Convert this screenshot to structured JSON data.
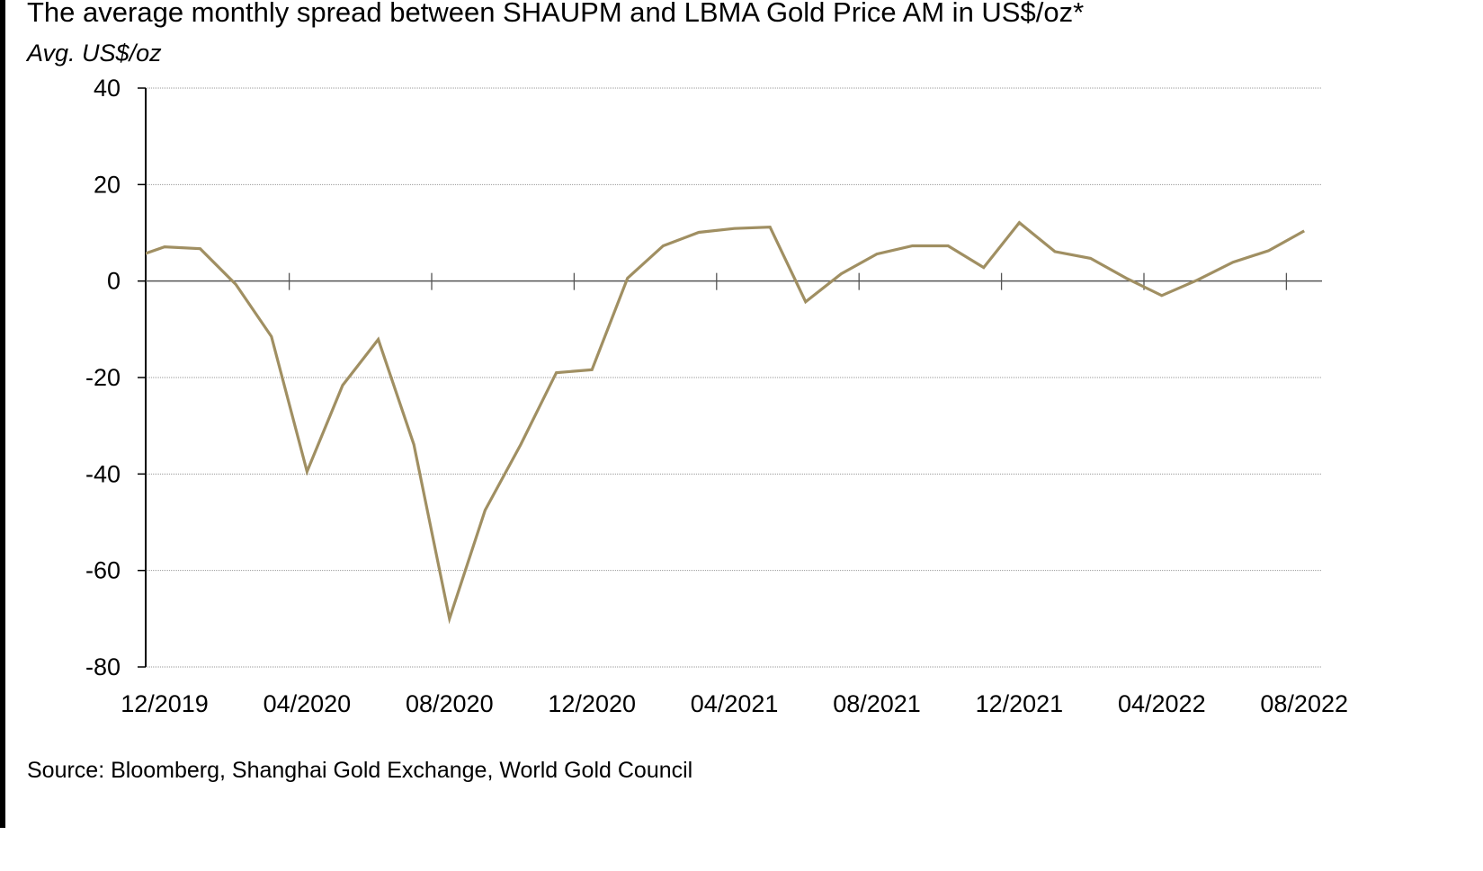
{
  "chart_data": {
    "type": "line",
    "title": "The average monthly spread between SHAUPM and LBMA Gold Price AM in US$/oz*",
    "subtitle": "Avg. US$/oz",
    "ylabel": "Avg. US$/oz",
    "xlabel": "",
    "ylim": [
      -80,
      40
    ],
    "yticks": [
      40,
      20,
      0,
      -20,
      -40,
      -60,
      -80
    ],
    "xtick_labels": [
      "12/2019",
      "04/2020",
      "08/2020",
      "12/2020",
      "04/2021",
      "08/2021",
      "12/2021",
      "04/2022",
      "08/2022"
    ],
    "grid": true,
    "legend": "none",
    "series": [
      {
        "name": "SHAUPM - LBMA Gold Price AM spread",
        "color": "#a08f62",
        "x": [
          "11/2019",
          "12/2019",
          "01/2020",
          "02/2020",
          "03/2020",
          "04/2020",
          "05/2020",
          "06/2020",
          "07/2020",
          "08/2020",
          "09/2020",
          "10/2020",
          "11/2020",
          "12/2020",
          "01/2021",
          "02/2021",
          "03/2021",
          "04/2021",
          "05/2021",
          "06/2021",
          "07/2021",
          "08/2021",
          "09/2021",
          "10/2021",
          "11/2021",
          "12/2021",
          "01/2022",
          "02/2022",
          "03/2022",
          "04/2022",
          "05/2022",
          "06/2022",
          "07/2022",
          "08/2022"
        ],
        "values": [
          4.5,
          7.1,
          6.7,
          -0.7,
          -11.5,
          -39.5,
          -21.6,
          -12.1,
          -33.9,
          -70.0,
          -47.5,
          -33.9,
          -19.0,
          -18.4,
          0.6,
          7.3,
          10.1,
          10.9,
          11.2,
          -4.3,
          1.5,
          5.6,
          7.3,
          7.3,
          2.8,
          12.1,
          6.1,
          4.7,
          0.6,
          -3.0,
          0.2,
          3.9,
          6.3,
          10.4
        ]
      }
    ]
  },
  "source": "Source: Bloomberg, Shanghai Gold Exchange, World Gold Council"
}
